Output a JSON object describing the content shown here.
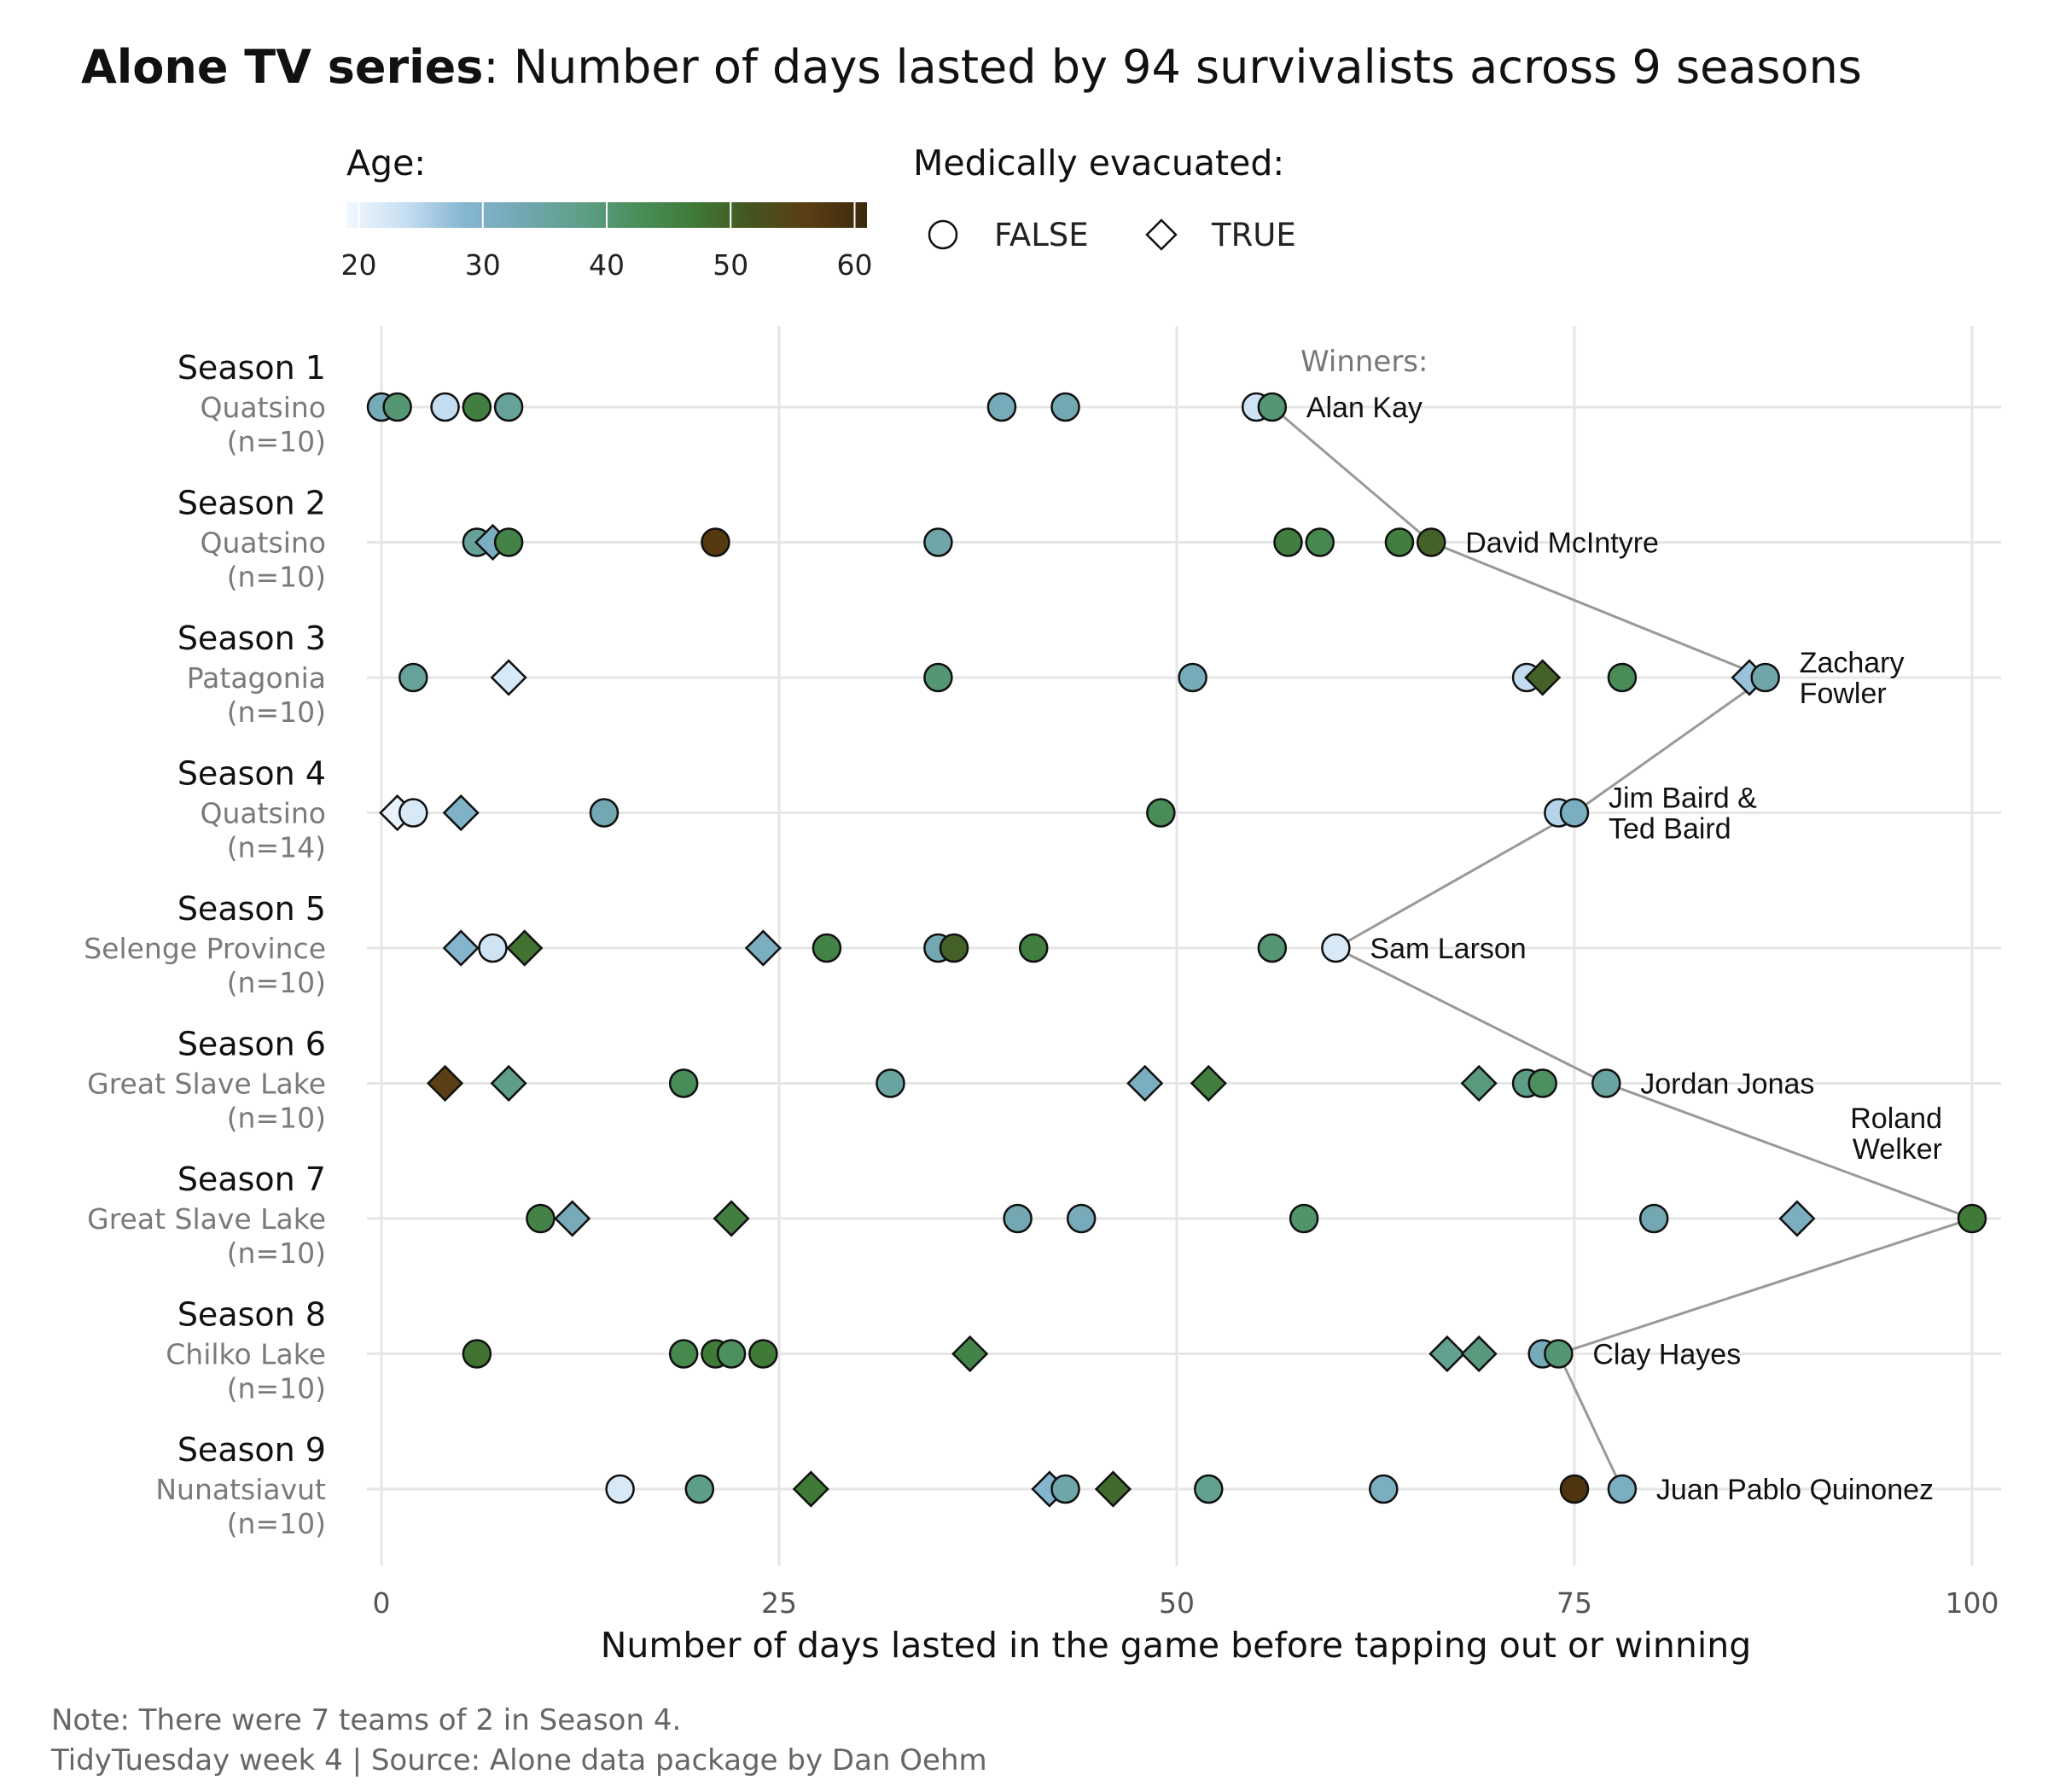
{
  "title": {
    "bold": "Alone TV series",
    "rest": ": Number of days lasted by 94 survivalists across 9 seasons"
  },
  "legend": {
    "age_title": "Age:",
    "age_ticks": [
      "20",
      "30",
      "40",
      "50",
      "60"
    ],
    "age_range": [
      19,
      61
    ],
    "age_colors": [
      "#f2f8ff",
      "#c8dff2",
      "#86b7d2",
      "#73a8b3",
      "#5f9f8a",
      "#4b8f5c",
      "#3f7a37",
      "#46541f",
      "#5a3d12",
      "#3a2a0c"
    ],
    "shape_title": "Medically evacuated:",
    "shape_false": "FALSE",
    "shape_true": "TRUE"
  },
  "axis": {
    "x_title": "Number of days lasted in the game before tapping out or winning",
    "x_ticks": [
      "0",
      "25",
      "50",
      "75",
      "100"
    ]
  },
  "winners_header": "Winners:",
  "caption": {
    "line1": "Note: There were 7 teams of 2 in Season 4.",
    "line2": "TidyTuesday week 4 | Source: Alone data package by Dan Oehm"
  },
  "chart_data": {
    "type": "scatter",
    "title": "Alone TV series: Number of days lasted by 94 survivalists across 9 seasons",
    "xlabel": "Number of days lasted in the game before tapping out or winning",
    "ylabel": "",
    "xlim": [
      0,
      100
    ],
    "x_ticks": [
      0,
      25,
      50,
      75,
      100
    ],
    "grid": true,
    "legend_placement": "top",
    "color_by": "age",
    "shape_by": "medically evacuated (circle = FALSE, diamond = TRUE)",
    "seasons": [
      {
        "name": "Season 1",
        "location": "Quatsino",
        "n": "(n=10)",
        "points": [
          {
            "days": 0,
            "age": 32,
            "evac": false
          },
          {
            "days": 1,
            "age": 40,
            "evac": false
          },
          {
            "days": 4,
            "age": 24,
            "evac": false
          },
          {
            "days": 6,
            "age": 46,
            "evac": false
          },
          {
            "days": 8,
            "age": 36,
            "evac": false
          },
          {
            "days": 39,
            "age": 32,
            "evac": false
          },
          {
            "days": 43,
            "age": 33,
            "evac": false
          },
          {
            "days": 55,
            "age": 23,
            "evac": false
          },
          {
            "days": 56,
            "age": 40,
            "evac": false,
            "winner": true
          }
        ]
      },
      {
        "name": "Season 2",
        "location": "Quatsino",
        "n": "(n=10)",
        "points": [
          {
            "days": 6,
            "age": 36,
            "evac": false
          },
          {
            "days": 7,
            "age": 31,
            "evac": true
          },
          {
            "days": 8,
            "age": 45,
            "evac": false
          },
          {
            "days": 21,
            "age": 57,
            "evac": false
          },
          {
            "days": 35,
            "age": 34,
            "evac": false
          },
          {
            "days": 57,
            "age": 46,
            "evac": false
          },
          {
            "days": 59,
            "age": 44,
            "evac": false
          },
          {
            "days": 64,
            "age": 46,
            "evac": false
          },
          {
            "days": 66,
            "age": 50,
            "evac": false,
            "winner": true
          }
        ]
      },
      {
        "name": "Season 3",
        "location": "Patagonia",
        "n": "(n=10)",
        "points": [
          {
            "days": 2,
            "age": 36,
            "evac": false
          },
          {
            "days": 8,
            "age": 22,
            "evac": true
          },
          {
            "days": 35,
            "age": 40,
            "evac": false
          },
          {
            "days": 51,
            "age": 32,
            "evac": false
          },
          {
            "days": 72,
            "age": 24,
            "evac": false
          },
          {
            "days": 73,
            "age": 50,
            "evac": true
          },
          {
            "days": 78,
            "age": 43,
            "evac": false
          },
          {
            "days": 86,
            "age": 27,
            "evac": true
          },
          {
            "days": 87,
            "age": 34,
            "evac": false,
            "winner": true
          }
        ]
      },
      {
        "name": "Season 4",
        "location": "Quatsino",
        "n": "(n=14)",
        "points": [
          {
            "days": 1,
            "age": 20,
            "evac": true
          },
          {
            "days": 2,
            "age": 22,
            "evac": false
          },
          {
            "days": 5,
            "age": 30,
            "evac": true
          },
          {
            "days": 14,
            "age": 33,
            "evac": false
          },
          {
            "days": 49,
            "age": 43,
            "evac": false
          },
          {
            "days": 74,
            "age": 25,
            "evac": false
          },
          {
            "days": 75,
            "age": 31,
            "evac": false,
            "winner": true
          }
        ]
      },
      {
        "name": "Season 5",
        "location": "Selenge Province",
        "n": "(n=10)",
        "points": [
          {
            "days": 5,
            "age": 29,
            "evac": true
          },
          {
            "days": 7,
            "age": 23,
            "evac": false
          },
          {
            "days": 9,
            "age": 48,
            "evac": true
          },
          {
            "days": 24,
            "age": 31,
            "evac": true
          },
          {
            "days": 28,
            "age": 45,
            "evac": false
          },
          {
            "days": 35,
            "age": 33,
            "evac": false
          },
          {
            "days": 36,
            "age": 50,
            "evac": false
          },
          {
            "days": 41,
            "age": 46,
            "evac": false
          },
          {
            "days": 56,
            "age": 40,
            "evac": false
          },
          {
            "days": 60,
            "age": 22,
            "evac": false,
            "winner": true
          }
        ]
      },
      {
        "name": "Season 6",
        "location": "Great Slave Lake",
        "n": "(n=10)",
        "points": [
          {
            "days": 4,
            "age": 56,
            "evac": true
          },
          {
            "days": 8,
            "age": 38,
            "evac": true
          },
          {
            "days": 19,
            "age": 43,
            "evac": false
          },
          {
            "days": 32,
            "age": 35,
            "evac": false
          },
          {
            "days": 48,
            "age": 31,
            "evac": true
          },
          {
            "days": 52,
            "age": 46,
            "evac": true
          },
          {
            "days": 69,
            "age": 39,
            "evac": true
          },
          {
            "days": 72,
            "age": 38,
            "evac": false
          },
          {
            "days": 73,
            "age": 42,
            "evac": false
          },
          {
            "days": 77,
            "age": 35,
            "evac": false,
            "winner": true
          }
        ]
      },
      {
        "name": "Season 7",
        "location": "Great Slave Lake",
        "n": "(n=10)",
        "points": [
          {
            "days": 10,
            "age": 45,
            "evac": false
          },
          {
            "days": 12,
            "age": 32,
            "evac": true
          },
          {
            "days": 22,
            "age": 46,
            "evac": true
          },
          {
            "days": 40,
            "age": 33,
            "evac": false
          },
          {
            "days": 44,
            "age": 32,
            "evac": false
          },
          {
            "days": 58,
            "age": 41,
            "evac": false
          },
          {
            "days": 80,
            "age": 33,
            "evac": false
          },
          {
            "days": 89,
            "age": 31,
            "evac": true
          },
          {
            "days": 100,
            "age": 47,
            "evac": false,
            "winner": true
          }
        ]
      },
      {
        "name": "Season 8",
        "location": "Chilko Lake",
        "n": "(n=10)",
        "points": [
          {
            "days": 6,
            "age": 48,
            "evac": false
          },
          {
            "days": 19,
            "age": 44,
            "evac": false
          },
          {
            "days": 21,
            "age": 47,
            "evac": false
          },
          {
            "days": 22,
            "age": 42,
            "evac": false
          },
          {
            "days": 24,
            "age": 47,
            "evac": false
          },
          {
            "days": 37,
            "age": 45,
            "evac": true
          },
          {
            "days": 67,
            "age": 37,
            "evac": true
          },
          {
            "days": 69,
            "age": 39,
            "evac": true
          },
          {
            "days": 73,
            "age": 32,
            "evac": false
          },
          {
            "days": 74,
            "age": 40,
            "evac": false,
            "winner": true
          }
        ]
      },
      {
        "name": "Season 9",
        "location": "Nunatsiavut",
        "n": "(n=10)",
        "points": [
          {
            "days": 15,
            "age": 22,
            "evac": false
          },
          {
            "days": 20,
            "age": 38,
            "evac": false
          },
          {
            "days": 27,
            "age": 47,
            "evac": true
          },
          {
            "days": 42,
            "age": 29,
            "evac": true
          },
          {
            "days": 43,
            "age": 34,
            "evac": false
          },
          {
            "days": 46,
            "age": 49,
            "evac": true
          },
          {
            "days": 52,
            "age": 37,
            "evac": false
          },
          {
            "days": 63,
            "age": 31,
            "evac": false
          },
          {
            "days": 75,
            "age": 58,
            "evac": false
          },
          {
            "days": 78,
            "age": 31,
            "evac": false,
            "winner": true
          }
        ]
      }
    ],
    "winners": [
      {
        "season": 1,
        "days": 56,
        "label": [
          "Alan Kay"
        ]
      },
      {
        "season": 2,
        "days": 66,
        "label": [
          "David McIntyre"
        ]
      },
      {
        "season": 3,
        "days": 87,
        "label": [
          "Zachary",
          "Fowler"
        ]
      },
      {
        "season": 4,
        "days": 75,
        "label": [
          "Jim Baird &",
          "Ted Baird"
        ]
      },
      {
        "season": 5,
        "days": 60,
        "label": [
          "Sam Larson"
        ]
      },
      {
        "season": 6,
        "days": 77,
        "label": [
          "Jordan Jonas"
        ]
      },
      {
        "season": 7,
        "days": 100,
        "label": [
          "Roland",
          "Welker"
        ]
      },
      {
        "season": 8,
        "days": 74,
        "label": [
          "Clay Hayes"
        ]
      },
      {
        "season": 9,
        "days": 78,
        "label": [
          "Juan Pablo Quinonez"
        ]
      }
    ]
  }
}
